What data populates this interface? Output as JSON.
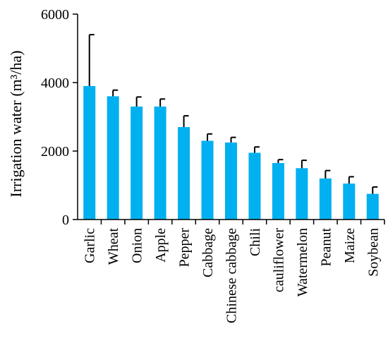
{
  "chart_data": {
    "type": "bar",
    "ylabel": "Irrigation water (m³/ha)",
    "xlabel": "",
    "ylim": [
      0,
      6000
    ],
    "yticks": [
      0,
      2000,
      4000,
      6000
    ],
    "grid": false,
    "bar_color": "#00b0f0",
    "categories": [
      "Garlic",
      "Wheat",
      "Onion",
      "Apple",
      "Pepper",
      "Cabbage",
      "Chinese cabbage",
      "Chili",
      "cauliflower",
      "Watermelon",
      "Peanut",
      "Maize",
      "Soybean"
    ],
    "values": [
      3900,
      3600,
      3300,
      3300,
      2700,
      2300,
      2250,
      1950,
      1650,
      1500,
      1200,
      1050,
      750
    ],
    "error_upper": [
      1500,
      180,
      280,
      220,
      330,
      200,
      150,
      170,
      100,
      230,
      230,
      200,
      200
    ]
  }
}
